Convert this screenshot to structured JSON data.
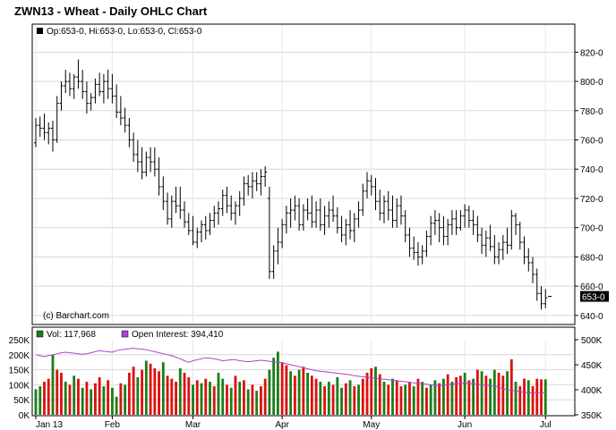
{
  "chart_data": [
    {
      "type": "ohlc",
      "title": "ZWN13 - Wheat - Daily OHLC Chart",
      "legend_text": "Op:653-0, Hi:653-0, Lo:653-0, Cl:653-0",
      "watermark": "(c) Barchart.com",
      "last_price_label": "653-0",
      "last_price": 653,
      "ylim": [
        635,
        830
      ],
      "y_ticks": [
        640,
        660,
        680,
        700,
        720,
        740,
        760,
        780,
        800,
        820
      ],
      "y_tick_labels": [
        "640-0",
        "660-0",
        "680-0",
        "700-0",
        "720-0",
        "740-0",
        "760-0",
        "780-0",
        "800-0",
        "820-0"
      ],
      "x_tick_labels": [
        "Jan 13",
        "Feb",
        "Mar",
        "Apr",
        "May",
        "Jun",
        "Jul"
      ],
      "x_tick_positions": [
        0,
        18,
        37,
        58,
        79,
        101,
        120
      ],
      "grid": true,
      "ohlc": [
        [
          758,
          775,
          755,
          770
        ],
        [
          770,
          776,
          762,
          768
        ],
        [
          768,
          778,
          760,
          765
        ],
        [
          765,
          772,
          757,
          768
        ],
        [
          768,
          773,
          752,
          760
        ],
        [
          760,
          790,
          758,
          785
        ],
        [
          785,
          800,
          780,
          797
        ],
        [
          797,
          808,
          792,
          800
        ],
        [
          800,
          806,
          790,
          795
        ],
        [
          795,
          805,
          788,
          803
        ],
        [
          803,
          815,
          795,
          800
        ],
        [
          800,
          808,
          788,
          793
        ],
        [
          793,
          800,
          778,
          785
        ],
        [
          785,
          792,
          780,
          789
        ],
        [
          789,
          802,
          785,
          798
        ],
        [
          798,
          806,
          790,
          793
        ],
        [
          793,
          805,
          785,
          800
        ],
        [
          800,
          808,
          788,
          795
        ],
        [
          795,
          805,
          785,
          790
        ],
        [
          790,
          798,
          775,
          779
        ],
        [
          779,
          790,
          770,
          775
        ],
        [
          775,
          782,
          765,
          770
        ],
        [
          770,
          775,
          755,
          760
        ],
        [
          760,
          765,
          745,
          750
        ],
        [
          750,
          760,
          738,
          745
        ],
        [
          745,
          755,
          733,
          738
        ],
        [
          738,
          752,
          735,
          748
        ],
        [
          748,
          755,
          738,
          745
        ],
        [
          745,
          755,
          735,
          740
        ],
        [
          740,
          748,
          722,
          728
        ],
        [
          728,
          735,
          712,
          718
        ],
        [
          718,
          724,
          702,
          706
        ],
        [
          706,
          722,
          700,
          718
        ],
        [
          718,
          728,
          710,
          715
        ],
        [
          715,
          728,
          706,
          712
        ],
        [
          712,
          718,
          700,
          704
        ],
        [
          704,
          710,
          695,
          698
        ],
        [
          698,
          708,
          688,
          690
        ],
        [
          690,
          700,
          686,
          697
        ],
        [
          697,
          705,
          690,
          702
        ],
        [
          702,
          708,
          692,
          698
        ],
        [
          698,
          710,
          695,
          705
        ],
        [
          705,
          715,
          700,
          710
        ],
        [
          710,
          718,
          702,
          713
        ],
        [
          713,
          726,
          708,
          722
        ],
        [
          722,
          728,
          710,
          715
        ],
        [
          715,
          722,
          705,
          710
        ],
        [
          710,
          718,
          702,
          715
        ],
        [
          715,
          725,
          708,
          720
        ],
        [
          720,
          735,
          715,
          730
        ],
        [
          730,
          736,
          722,
          728
        ],
        [
          728,
          738,
          720,
          732
        ],
        [
          732,
          738,
          725,
          730
        ],
        [
          730,
          740,
          722,
          735
        ],
        [
          735,
          742,
          728,
          738
        ],
        [
          720,
          728,
          665,
          670
        ],
        [
          670,
          688,
          665,
          684
        ],
        [
          684,
          700,
          675,
          690
        ],
        [
          690,
          706,
          686,
          702
        ],
        [
          702,
          715,
          696,
          710
        ],
        [
          710,
          720,
          700,
          712
        ],
        [
          712,
          722,
          705,
          715
        ],
        [
          715,
          720,
          698,
          702
        ],
        [
          702,
          716,
          698,
          712
        ],
        [
          712,
          720,
          705,
          710
        ],
        [
          710,
          722,
          700,
          704
        ],
        [
          704,
          718,
          700,
          712
        ],
        [
          712,
          720,
          698,
          702
        ],
        [
          702,
          715,
          695,
          708
        ],
        [
          708,
          718,
          700,
          712
        ],
        [
          712,
          722,
          704,
          708
        ],
        [
          708,
          714,
          696,
          700
        ],
        [
          700,
          708,
          690,
          695
        ],
        [
          695,
          706,
          688,
          702
        ],
        [
          702,
          712,
          692,
          698
        ],
        [
          698,
          710,
          690,
          706
        ],
        [
          706,
          718,
          700,
          712
        ],
        [
          712,
          730,
          708,
          725
        ],
        [
          725,
          738,
          720,
          732
        ],
        [
          732,
          736,
          722,
          728
        ],
        [
          728,
          734,
          712,
          718
        ],
        [
          718,
          726,
          705,
          710
        ],
        [
          710,
          722,
          703,
          718
        ],
        [
          718,
          725,
          705,
          712
        ],
        [
          712,
          722,
          700,
          705
        ],
        [
          705,
          720,
          700,
          715
        ],
        [
          715,
          722,
          702,
          708
        ],
        [
          708,
          712,
          690,
          695
        ],
        [
          695,
          700,
          680,
          686
        ],
        [
          686,
          694,
          678,
          683
        ],
        [
          683,
          690,
          674,
          680
        ],
        [
          680,
          688,
          675,
          684
        ],
        [
          684,
          698,
          680,
          694
        ],
        [
          694,
          708,
          688,
          703
        ],
        [
          703,
          712,
          695,
          705
        ],
        [
          705,
          710,
          690,
          700
        ],
        [
          700,
          708,
          688,
          694
        ],
        [
          694,
          706,
          688,
          702
        ],
        [
          702,
          712,
          695,
          706
        ],
        [
          706,
          712,
          695,
          700
        ],
        [
          700,
          712,
          698,
          708
        ],
        [
          708,
          716,
          700,
          712
        ],
        [
          712,
          715,
          700,
          705
        ],
        [
          705,
          712,
          695,
          702
        ],
        [
          702,
          708,
          690,
          695
        ],
        [
          695,
          700,
          682,
          688
        ],
        [
          688,
          698,
          680,
          693
        ],
        [
          693,
          702,
          684,
          687
        ],
        [
          687,
          695,
          675,
          680
        ],
        [
          680,
          690,
          675,
          685
        ],
        [
          685,
          695,
          678,
          690
        ],
        [
          690,
          700,
          682,
          688
        ],
        [
          688,
          712,
          685,
          708
        ],
        [
          708,
          710,
          695,
          702
        ],
        [
          702,
          704,
          685,
          690
        ],
        [
          690,
          694,
          675,
          680
        ],
        [
          680,
          686,
          670,
          676
        ],
        [
          676,
          680,
          662,
          668
        ],
        [
          668,
          672,
          650,
          655
        ],
        [
          655,
          660,
          644,
          648
        ],
        [
          648,
          658,
          645,
          652
        ],
        [
          653,
          653,
          653,
          653
        ]
      ]
    },
    {
      "type": "bar",
      "legend": [
        {
          "name": "Vol",
          "value": "117,968"
        },
        {
          "name": "Open Interest",
          "value": "394,410"
        }
      ],
      "ylim_left": [
        0,
        250000
      ],
      "y_ticks_left": [
        0,
        50000,
        100000,
        150000,
        200000,
        250000
      ],
      "y_tick_labels_left": [
        "0K",
        "50K",
        "100K",
        "150K",
        "200K",
        "250K"
      ],
      "ylim_right": [
        350000,
        500000
      ],
      "y_ticks_right": [
        350000,
        400000,
        450000,
        500000
      ],
      "y_tick_labels_right": [
        "350K",
        "400K",
        "450K",
        "500K"
      ],
      "volume": [
        85,
        95,
        110,
        120,
        200,
        150,
        140,
        110,
        100,
        130,
        120,
        90,
        110,
        85,
        105,
        125,
        95,
        115,
        90,
        60,
        105,
        100,
        140,
        160,
        125,
        150,
        180,
        170,
        155,
        145,
        175,
        130,
        120,
        110,
        155,
        140,
        125,
        100,
        115,
        105,
        120,
        110,
        95,
        140,
        120,
        100,
        90,
        130,
        110,
        115,
        85,
        100,
        80,
        95,
        120,
        150,
        190,
        210,
        175,
        165,
        145,
        130,
        150,
        160,
        140,
        130,
        120,
        110,
        95,
        110,
        100,
        125,
        90,
        105,
        115,
        95,
        100,
        120,
        140,
        155,
        160,
        135,
        110,
        100,
        120,
        115,
        95,
        100,
        110,
        95,
        120,
        110,
        90,
        100,
        115,
        105,
        120,
        135,
        110,
        125,
        130,
        140,
        115,
        120,
        150,
        145,
        130,
        120,
        150,
        140,
        130,
        145,
        185,
        110,
        95,
        120,
        115,
        95,
        120,
        118,
        118
      ],
      "volume_colors": "GGRRGRRGRGRGRGRRGRGGRGRRGRGRRRGRRRGRRGRGRGRGGRGRGRGRGRRGGGRRGRGRGRRGRGRGGRGRGRRRGRGRGRRGRGRGRGGRGRGRRGRGRGRGGRRGRGRRGRRRGGRGG",
      "open_interest": [
        470,
        468,
        466,
        468,
        470,
        472,
        474,
        475,
        474,
        473,
        472,
        471,
        472,
        474,
        476,
        478,
        477,
        476,
        475,
        478,
        480,
        481,
        482,
        483,
        482,
        481,
        480,
        478,
        476,
        474,
        472,
        470,
        468,
        465,
        462,
        458,
        455,
        458,
        460,
        462,
        464,
        463,
        462,
        460,
        458,
        459,
        460,
        460,
        458,
        457,
        456,
        457,
        458,
        459,
        458,
        457,
        456,
        455,
        454,
        452,
        450,
        448,
        446,
        444,
        442,
        440,
        438,
        437,
        436,
        435,
        434,
        433,
        432,
        431,
        430,
        428,
        427,
        426,
        425,
        424,
        423,
        422,
        421,
        420,
        419,
        418,
        417,
        416,
        415,
        414,
        413,
        412,
        411,
        410,
        409,
        408,
        409,
        410,
        411,
        412,
        413,
        414,
        413,
        412,
        411,
        410,
        409,
        408,
        407,
        405,
        402,
        400,
        399,
        398,
        396,
        395,
        394,
        394,
        394,
        394,
        394
      ]
    }
  ]
}
